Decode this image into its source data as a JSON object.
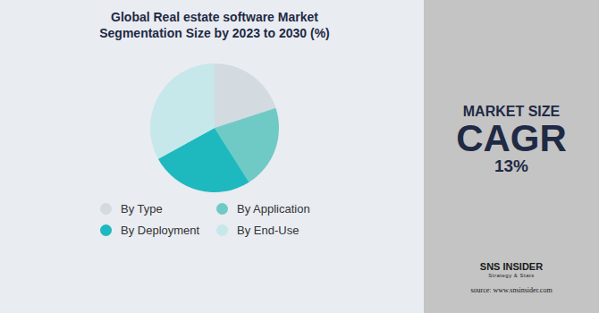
{
  "chart_data": {
    "type": "pie",
    "title": "Global Real estate software Market Segmentation Size by 2023 to 2030 (%)",
    "categories": [
      "By Type",
      "By Application",
      "By Deployment",
      "By End-Use"
    ],
    "values": [
      20,
      21,
      26,
      33
    ],
    "colors": [
      "#d3dae0",
      "#6fcac5",
      "#1eb9bf",
      "#c6e8ea"
    ],
    "data_labels": false
  },
  "side_panel": {
    "heading": "MARKET SIZE",
    "metric": "CAGR",
    "value": "13%"
  },
  "branding": {
    "name": "SNS INSIDER",
    "tagline": "Strategy & Stats",
    "source": "source: www.snsinsider.com"
  }
}
